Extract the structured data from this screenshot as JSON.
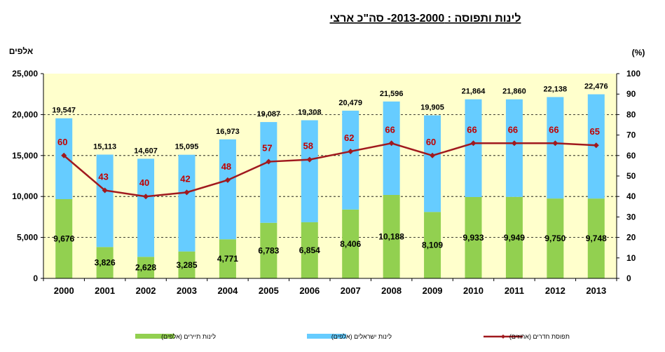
{
  "chart_data": {
    "type": "bar",
    "title": "לינות ותפוסה : 2013-2000- סה\"כ ארצי",
    "y_left_unit": "אלפים",
    "y_right_unit": "(%)",
    "categories": [
      "2000",
      "2001",
      "2002",
      "2003",
      "2004",
      "2005",
      "2006",
      "2007",
      "2008",
      "2009",
      "2010",
      "2011",
      "2012",
      "2013"
    ],
    "ylim": [
      0,
      25000
    ],
    "y_ticks": [
      "0",
      "5,000",
      "10,000",
      "15,000",
      "20,000",
      "25,000"
    ],
    "y2lim": [
      0,
      100
    ],
    "y2_ticks": [
      "0",
      "10",
      "20",
      "30",
      "40",
      "50",
      "60",
      "70",
      "80",
      "90",
      "100"
    ],
    "series": [
      {
        "name": "לינות תיירים (אלפים)",
        "type": "stacked-bar",
        "color": "#92d050",
        "values": [
          9676,
          3826,
          2628,
          3285,
          4771,
          6783,
          6854,
          8406,
          10188,
          8109,
          9933,
          9949,
          9750,
          9748
        ],
        "labels": [
          "9,676",
          "3,826",
          "2,628",
          "3,285",
          "4,771",
          "6,783",
          "6,854",
          "8,406",
          "10,188",
          "8,109",
          "9,933",
          "9,949",
          "9,750",
          "9,748"
        ]
      },
      {
        "name": "לינות ישראלים (אלפים)",
        "type": "stacked-bar",
        "color": "#66ccff",
        "values": [
          9871,
          11287,
          11979,
          11810,
          12202,
          12304,
          12454,
          12073,
          11408,
          11796,
          11931,
          11911,
          12388,
          12728
        ]
      },
      {
        "name": "תפוסת חדרים (אחוזים)",
        "type": "line",
        "axis": "right",
        "color": "#a0191e",
        "values": [
          60,
          43,
          40,
          42,
          48,
          57,
          58,
          62,
          66,
          60,
          66,
          66,
          66,
          65
        ],
        "labels": [
          "60",
          "43",
          "40",
          "42",
          "48",
          "57",
          "58",
          "62",
          "66",
          "60",
          "66",
          "66",
          "66",
          "65"
        ]
      }
    ],
    "totals": [
      "19,547",
      "15,113",
      "14,607",
      "15,095",
      "16,973",
      "19,087",
      "19,308",
      "20,479",
      "21,596",
      "19,905",
      "21,864",
      "21,860",
      "22,138",
      "22,476"
    ],
    "total_values": [
      19547,
      15113,
      14607,
      15095,
      16973,
      19087,
      19308,
      20479,
      21596,
      19905,
      21864,
      21860,
      22138,
      22476
    ],
    "plot_background": "#ffffcc",
    "grid": "dashed",
    "legend_position": "bottom"
  }
}
